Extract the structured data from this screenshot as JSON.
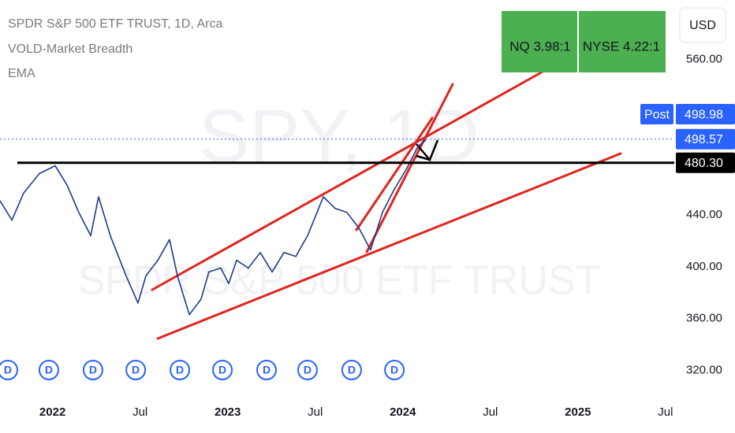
{
  "chart_data": {
    "type": "line",
    "title": "SPDR S&P 500 ETF TRUST, 1D, Arca",
    "indicators": [
      "VOLD-Market Breadth",
      "EMA"
    ],
    "watermark": [
      "SPY, 1D",
      "SPDR S&P 500 ETF TRUST"
    ],
    "currency": "USD",
    "breadth_boxes": [
      "NQ 3.98:1",
      "NYSE 4.22:1"
    ],
    "x": [
      2021.7,
      2021.768,
      2021.835,
      2021.925,
      2022.015,
      2022.083,
      2022.15,
      2022.218,
      2022.263,
      2022.33,
      2022.42,
      2022.488,
      2022.533,
      2022.601,
      2022.668,
      2022.713,
      2022.781,
      2022.848,
      2022.893,
      2022.961,
      2023.006,
      2023.051,
      2023.118,
      2023.186,
      2023.254,
      2023.321,
      2023.389,
      2023.456,
      2023.546,
      2023.614,
      2023.681,
      2023.749,
      2023.816,
      2023.884,
      2023.952,
      2024.019,
      2024.087,
      2024.132
    ],
    "values": [
      451,
      436,
      457,
      472,
      478,
      463,
      442,
      424,
      454,
      424,
      393,
      372,
      393,
      405,
      421,
      393,
      363,
      375,
      396,
      399,
      387,
      405,
      399,
      411,
      396,
      411,
      408,
      424,
      454,
      445,
      442,
      430,
      413,
      442,
      460,
      475,
      493,
      498
    ],
    "color": "#1e3a8a",
    "xlim": [
      2021.7,
      2025.55
    ],
    "xticks": [
      {
        "value": 2022,
        "label": "2022"
      },
      {
        "value": 2022.5,
        "label": "Jul"
      },
      {
        "value": 2023,
        "label": "2023"
      },
      {
        "value": 2023.5,
        "label": "Jul"
      },
      {
        "value": 2024,
        "label": "2024"
      },
      {
        "value": 2024.5,
        "label": "Jul"
      },
      {
        "value": 2025,
        "label": "2025"
      },
      {
        "value": 2025.5,
        "label": "Jul"
      }
    ],
    "ylim": [
      299,
      606
    ],
    "yticks": [
      {
        "value": 560,
        "label": "560.00"
      },
      {
        "value": 440,
        "label": "440.00"
      },
      {
        "value": 400,
        "label": "400.00"
      },
      {
        "value": 360,
        "label": "360.00"
      },
      {
        "value": 320,
        "label": "320.00"
      }
    ],
    "price_labels": [
      {
        "value": 498.98,
        "label": "498.98",
        "tag": "Post",
        "color": "#2962ff"
      },
      {
        "value": 498.57,
        "label": "498.57",
        "color": "#2962ff"
      },
      {
        "value": 480.3,
        "label": "480.30",
        "color": "#000000"
      }
    ],
    "dividends": [
      {
        "x": 2021.745,
        "label": "D"
      },
      {
        "x": 2021.979,
        "label": "D"
      },
      {
        "x": 2022.231,
        "label": "D"
      },
      {
        "x": 2022.475,
        "label": "D"
      },
      {
        "x": 2022.727,
        "label": "D"
      },
      {
        "x": 2022.97,
        "label": "D"
      },
      {
        "x": 2023.222,
        "label": "D"
      },
      {
        "x": 2023.456,
        "label": "D"
      },
      {
        "x": 2023.708,
        "label": "D"
      },
      {
        "x": 2023.952,
        "label": "D"
      }
    ]
  }
}
